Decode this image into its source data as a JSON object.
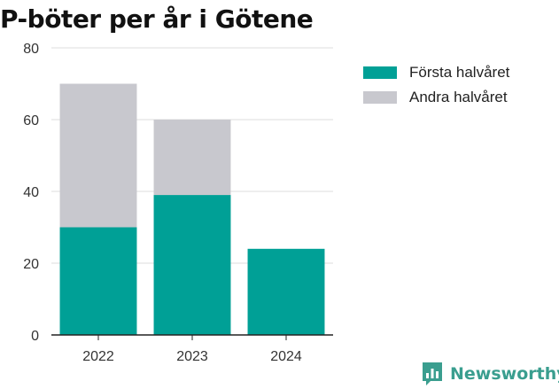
{
  "chart_data": {
    "type": "bar",
    "stacked": true,
    "title": "P-böter per år i Götene",
    "categories": [
      "2022",
      "2023",
      "2024"
    ],
    "series": [
      {
        "name": "Första halvåret",
        "color": "#00a096",
        "values": [
          30,
          39,
          24
        ]
      },
      {
        "name": "Andra halvåret",
        "color": "#c8c8ce",
        "values": [
          40,
          21,
          0
        ]
      }
    ],
    "ylim": [
      0,
      80
    ],
    "yticks": [
      0,
      20,
      40,
      60,
      80
    ],
    "grid": true,
    "legend_position": "top-right"
  },
  "brand": {
    "name": "Newsworthy",
    "icon": "newsworthy-logo-icon",
    "color": "#3a9e8f"
  }
}
